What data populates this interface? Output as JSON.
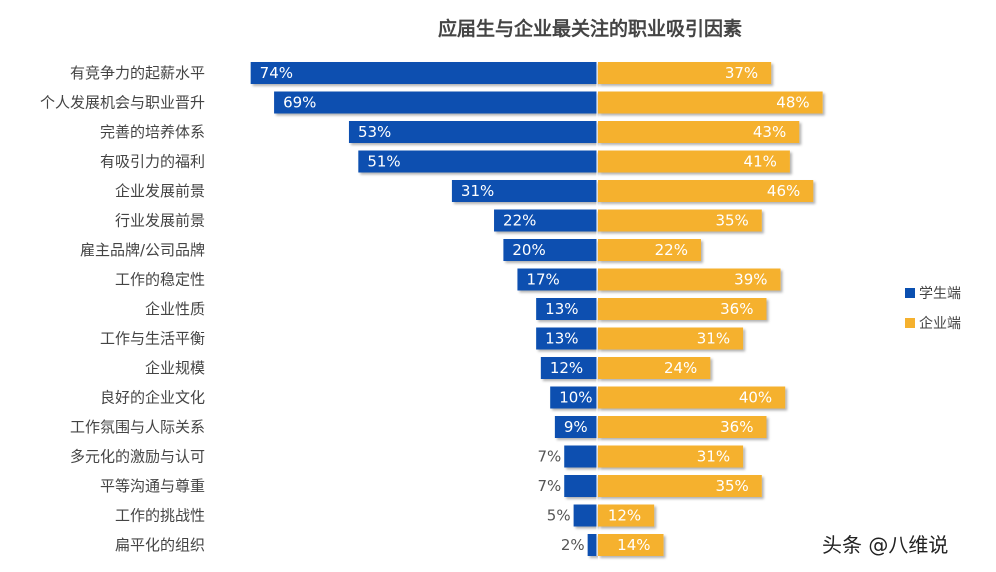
{
  "chart_data": {
    "type": "bar",
    "orientation": "horizontal-diverging",
    "title": "应届生与企业最关注的职业吸引因素",
    "categories": [
      "有竞争力的起薪水平",
      "个人发展机会与职业晋升",
      "完善的培养体系",
      "有吸引力的福利",
      "企业发展前景",
      "行业发展前景",
      "雇主品牌/公司品牌",
      "工作的稳定性",
      "企业性质",
      "工作与生活平衡",
      "企业规模",
      "良好的企业文化",
      "工作氛围与人际关系",
      "多元化的激励与认可",
      "平等沟通与尊重",
      "工作的挑战性",
      "扁平化的组织"
    ],
    "series": [
      {
        "name": "学生端",
        "color": "#0a4fb0",
        "direction": "left",
        "values": [
          74,
          69,
          53,
          51,
          31,
          22,
          20,
          17,
          13,
          13,
          12,
          10,
          9,
          7,
          7,
          5,
          2
        ]
      },
      {
        "name": "企业端",
        "color": "#f5b12e",
        "direction": "right",
        "values": [
          37,
          48,
          43,
          41,
          46,
          35,
          22,
          39,
          36,
          31,
          24,
          40,
          36,
          31,
          35,
          12,
          14
        ]
      }
    ],
    "unit": "%",
    "xlim": [
      -80,
      80
    ],
    "grid": false,
    "legend_position": "right"
  },
  "watermark": "头条 @八维说"
}
